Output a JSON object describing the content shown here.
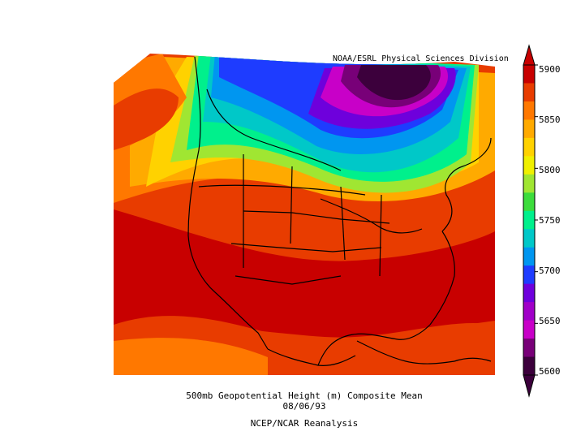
{
  "credit": "NOAA/ESRL Physical Sciences Division",
  "caption": {
    "line1": "500mb Geopotential Height (m) Composite Mean",
    "line2": "08/06/93",
    "line3": "NCEP/NCAR Reanalysis"
  },
  "colorbar": {
    "ticks": [
      "5900",
      "5850",
      "5800",
      "5750",
      "5700",
      "5650",
      "5600"
    ],
    "colors_top_to_bottom": [
      "#c80000",
      "#e83c00",
      "#ff7800",
      "#ffaa00",
      "#ffd200",
      "#f0f000",
      "#a0e632",
      "#3cdc3c",
      "#00f08c",
      "#00c8c8",
      "#0096f0",
      "#1e3cff",
      "#6e00dc",
      "#a000c8",
      "#c800c8",
      "#780078",
      "#3c003c"
    ]
  }
}
